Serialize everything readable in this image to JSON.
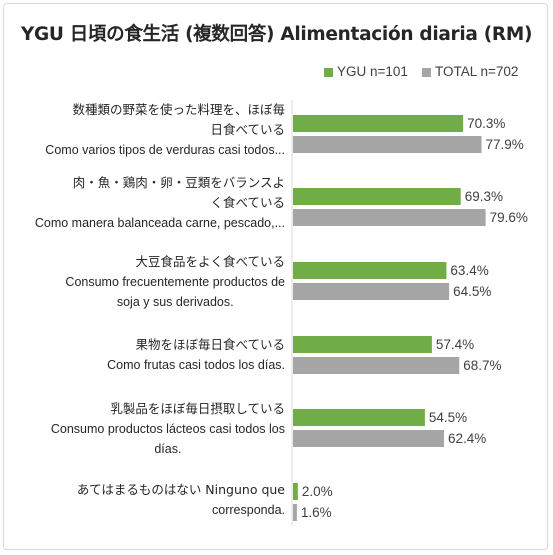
{
  "chart_data": {
    "type": "bar",
    "orientation": "horizontal",
    "title": "YGU 日頃の食生活 (複数回答) Alimentación diaria (RM)",
    "categories": [
      {
        "lines": [
          "数種類の野菜を使った料理を、ほぼ毎",
          "日食べている",
          "Como varios tipos de verduras casi todos..."
        ]
      },
      {
        "lines": [
          "肉・魚・鶏肉・卵・豆類をバランスよ",
          "く食べている",
          "Como manera balanceada carne, pescado,..."
        ]
      },
      {
        "lines": [
          "大豆食品をよく食べている",
          "Consumo frecuentemente productos de",
          "soja y sus derivados."
        ]
      },
      {
        "lines": [
          "果物をほぼ毎日食べている",
          "Como frutas casi todos los días."
        ]
      },
      {
        "lines": [
          "乳製品をほぼ毎日摂取している",
          "Consumo productos lácteos casi todos los",
          "días."
        ]
      },
      {
        "lines": [
          "あてはまるものはない Ninguno que",
          "corresponda."
        ]
      }
    ],
    "series": [
      {
        "name": "YGU n=101",
        "color": "#70ad47",
        "values": [
          70.3,
          69.3,
          63.4,
          57.4,
          54.5,
          2.0
        ],
        "labels": [
          "70.3%",
          "69.3%",
          "63.4%",
          "57.4%",
          "54.5%",
          "2.0%"
        ]
      },
      {
        "name": "TOTAL n=702",
        "color": "#a5a5a5",
        "values": [
          77.9,
          79.6,
          64.5,
          68.7,
          62.4,
          1.6
        ],
        "labels": [
          "77.9%",
          "79.6%",
          "64.5%",
          "68.7%",
          "62.4%",
          "1.6%"
        ]
      }
    ],
    "xlim": [
      0,
      100
    ],
    "legend_position": "top-right",
    "grid": false
  }
}
